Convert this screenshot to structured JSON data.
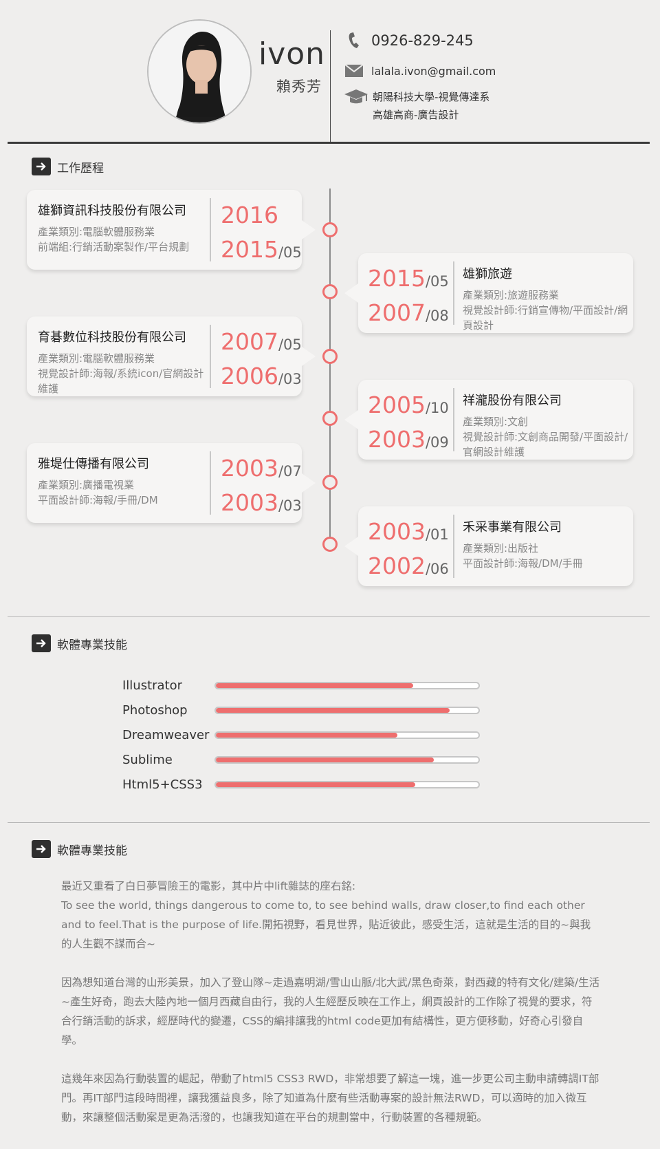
{
  "header": {
    "name_en": "ivon",
    "name_zh": "賴秀芳",
    "phone": "0926-829-245",
    "email": "lalala.ivon@gmail.com",
    "education": [
      "朝陽科技大學-視覺傳達系",
      "高雄高商-廣告設計"
    ]
  },
  "sections": {
    "work_title": "工作歷程",
    "skills_title": "軟體專業技能",
    "about_title": "軟體專業技能"
  },
  "jobs": [
    {
      "company": "雄獅資訊科技股份有限公司",
      "lines": [
        "產業類別:電腦軟體服務業",
        "前端組:行銷活動案製作/平台規劃"
      ],
      "end_year": "2016",
      "end_month": "",
      "start_year": "2015",
      "start_month": "/05"
    },
    {
      "company": "雄獅旅遊",
      "lines": [
        "產業類別:旅遊服務業",
        "視覺設計師:行銷宣傳物/平面設計/網頁設計"
      ],
      "end_year": "2015",
      "end_month": "/05",
      "start_year": "2007",
      "start_month": "/08"
    },
    {
      "company": "育碁數位科技股份有限公司",
      "lines": [
        "產業類別:電腦軟體服務業",
        "視覺設計師:海報/系統icon/官網設計維護"
      ],
      "end_year": "2007",
      "end_month": "/05",
      "start_year": "2006",
      "start_month": "/03"
    },
    {
      "company": "祥瀧股份有限公司",
      "lines": [
        "產業類別:文創",
        "視覺設計師:文創商品開發/平面設計/官網設計維護"
      ],
      "end_year": "2005",
      "end_month": "/10",
      "start_year": "2003",
      "start_month": "/09"
    },
    {
      "company": "雅堤仕傳播有限公司",
      "lines": [
        "產業類別:廣播電視業",
        "平面設計師:海報/手冊/DM"
      ],
      "end_year": "2003",
      "end_month": "/07",
      "start_year": "2003",
      "start_month": "/03"
    },
    {
      "company": "禾采事業有限公司",
      "lines": [
        "產業類別:出版社",
        "平面設計師:海報/DM/手冊"
      ],
      "end_year": "2003",
      "end_month": "/01",
      "start_year": "2002",
      "start_month": "/06"
    }
  ],
  "skills": [
    {
      "name": "Illustrator",
      "level": 0.75
    },
    {
      "name": "Photoshop",
      "level": 0.89
    },
    {
      "name": "Dreamweaver",
      "level": 0.69
    },
    {
      "name": "Sublime",
      "level": 0.83
    },
    {
      "name": "Html5+CSS3",
      "level": 0.76
    }
  ],
  "about": [
    "最近又重看了白日夢冒險王的電影，其中片中lift雜誌的座右銘:\nTo see the world, things dangerous to come to, to see behind walls, draw closer,to find each other and to feel.That is the purpose of life.開拓視野，看見世界，貼近彼此，感受生活，這就是生活的目的~與我的人生觀不謀而合~",
    "因為想知道台灣的山形美景，加入了登山隊~走過嘉明湖/雪山山脈/北大武/黑色奇萊，對西藏的特有文化/建築/生活~產生好奇，跑去大陸內地一個月西藏自由行，我的人生經歷反映在工作上，網頁設計的工作除了視覺的要求，符合行銷活動的訴求，經歷時代的變遷，CSS的編排讓我的html code更加有結構性，更方便移動，好奇心引發自學。",
    "這幾年來因為行動裝置的崛起，帶動了html5 CSS3 RWD，非常想要了解這一塊，進一步更公司主動申請轉調IT部門。再IT部門這段時間裡，讓我獲益良多，除了知道為什麼有些活動專案的設計無法RWD，可以適時的加入微互動，來讓整個活動案是更為活潑的，也讓我知道在平台的規劃當中，行動裝置的各種規範。"
  ],
  "colors": {
    "accent": "#ee6e6e",
    "background": "#efeeed",
    "card": "#f6f5f4",
    "dark": "#2f2f2f"
  }
}
